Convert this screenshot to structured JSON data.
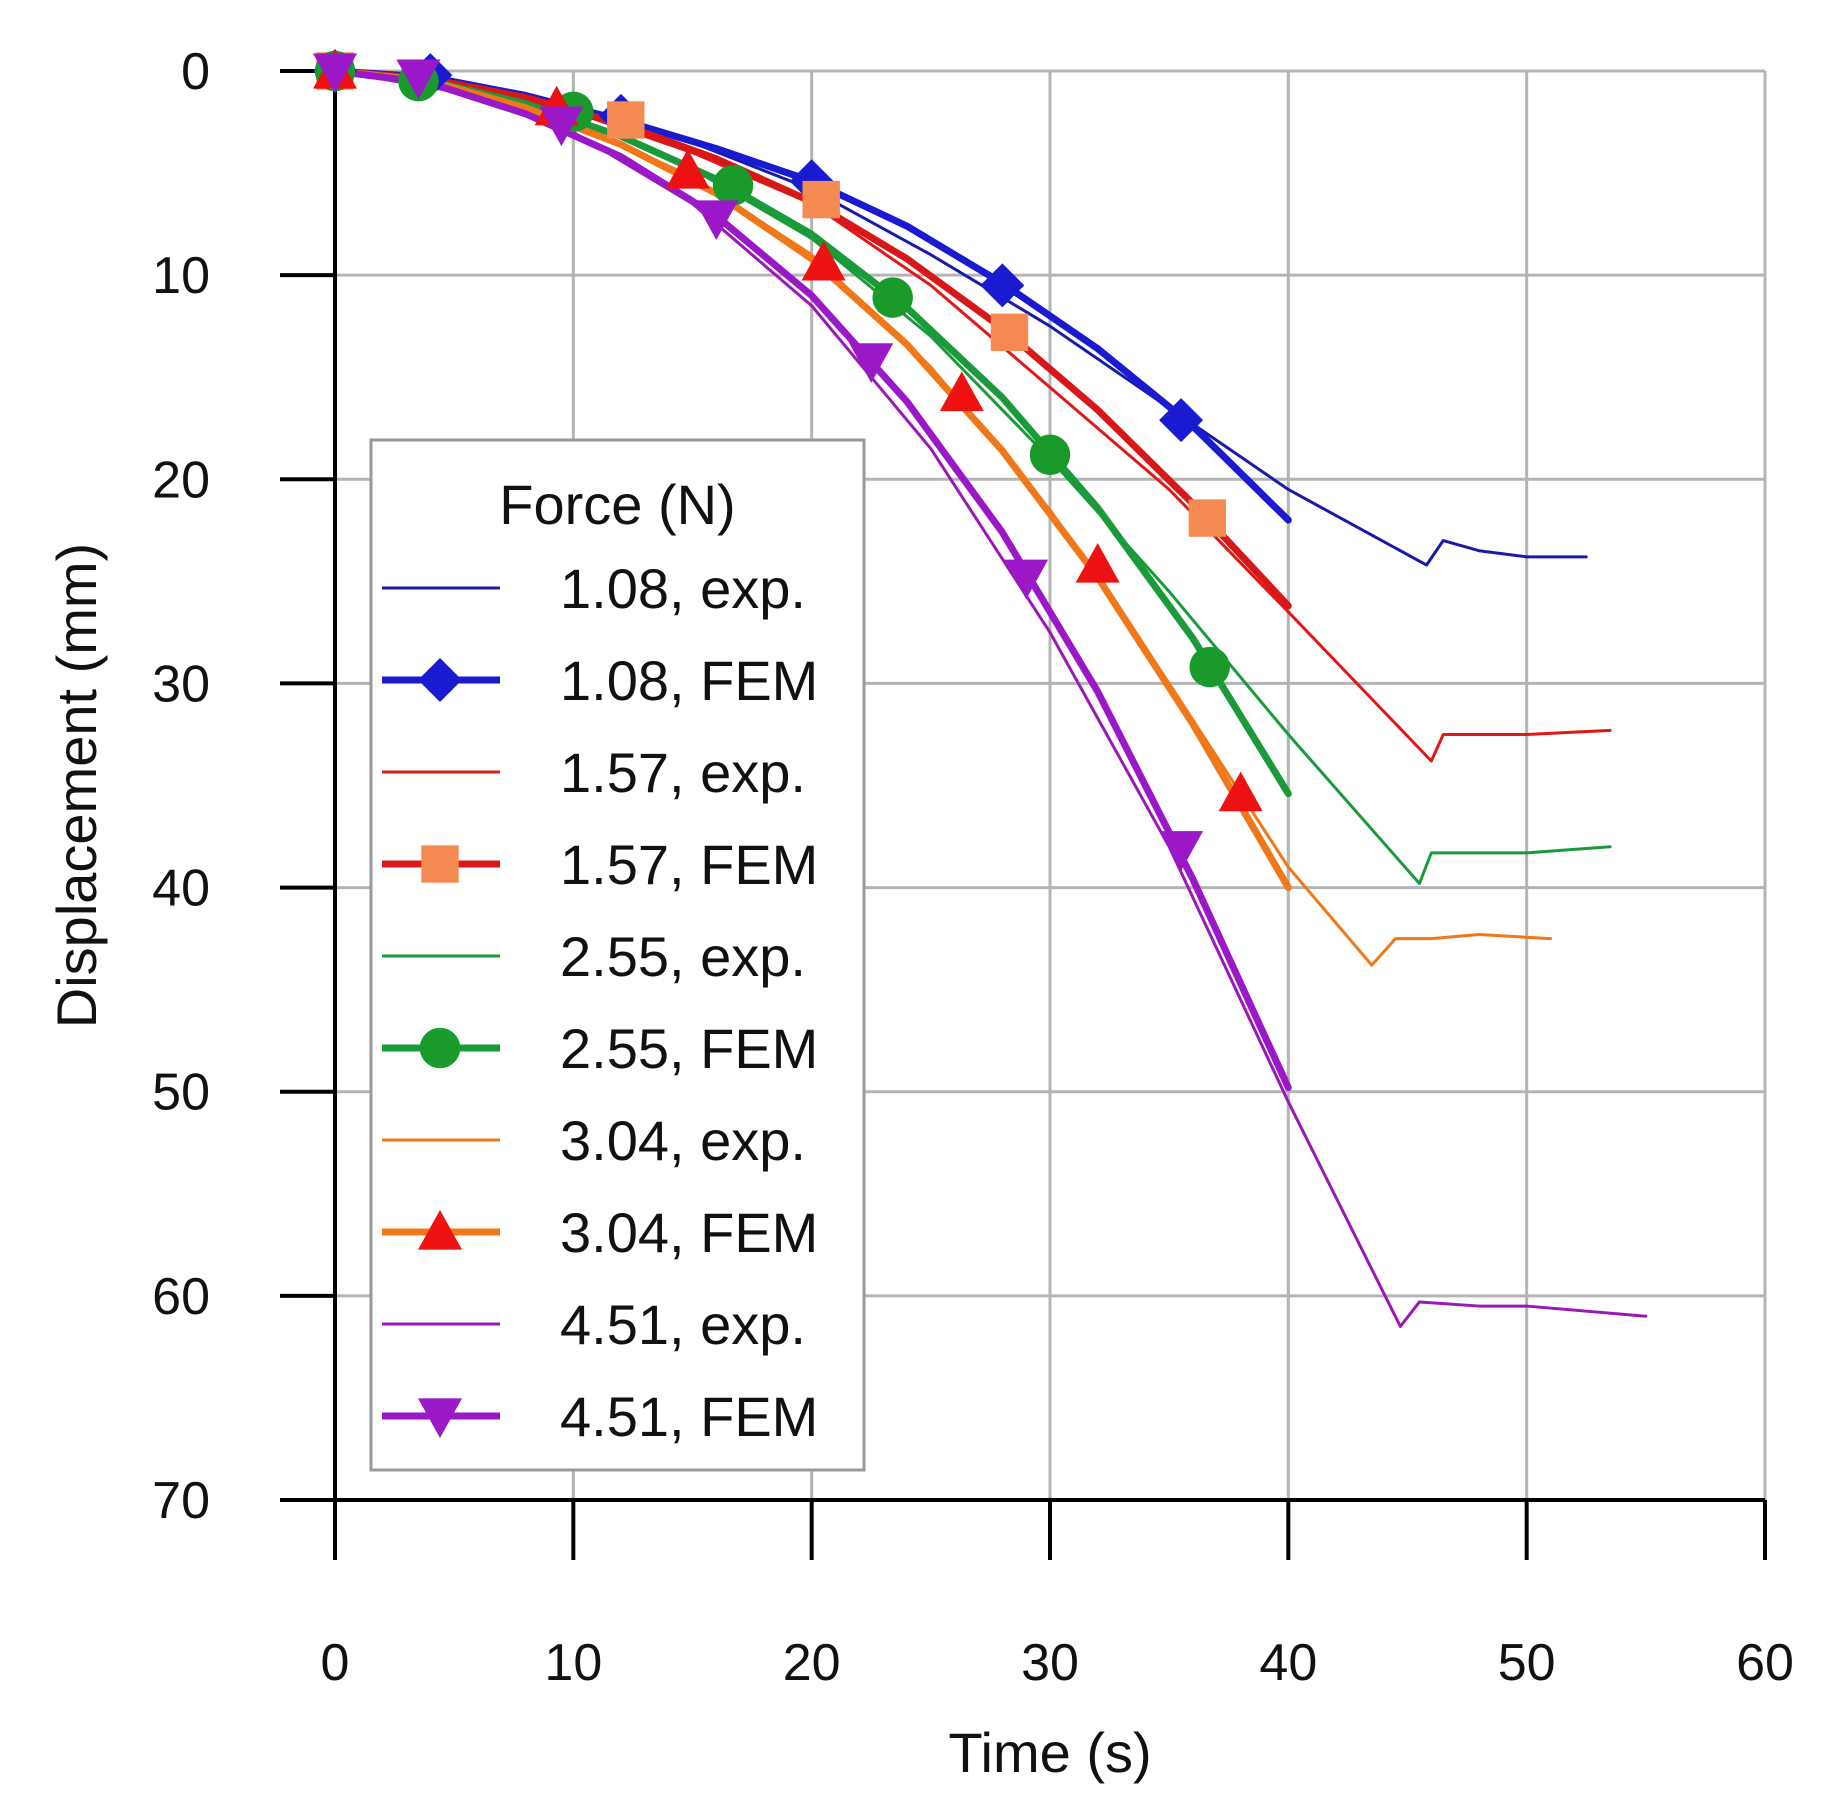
{
  "chart_data": {
    "type": "line",
    "xlabel": "Time (s)",
    "ylabel": "Displacement (mm)",
    "xlim": [
      0,
      60
    ],
    "ylim": [
      0,
      70
    ],
    "y_inverted": true,
    "grid": true,
    "x_ticks": [
      "0",
      "10",
      "20",
      "30",
      "40",
      "50",
      "60"
    ],
    "y_ticks": [
      "0",
      "10",
      "20",
      "30",
      "40",
      "50",
      "60",
      "70"
    ],
    "legend": {
      "title": "Force (N)",
      "placement": "left-center"
    },
    "series": [
      {
        "name": "1.08, exp.",
        "color": "#1a1aa8",
        "style": "thin",
        "x": [
          0,
          5,
          10,
          15,
          20,
          25,
          30,
          35,
          40,
          45.8,
          46.5,
          48,
          50,
          52.5
        ],
        "y": [
          0,
          0.6,
          1.8,
          3.5,
          5.8,
          9.0,
          12.5,
          16.5,
          20.5,
          24.2,
          23.0,
          23.5,
          23.8,
          23.8
        ]
      },
      {
        "name": "1.08, FEM",
        "color": "#1a1ad0",
        "marker": "diamond-blue",
        "x": [
          0,
          4,
          8,
          12,
          16,
          20,
          24,
          28,
          32,
          36,
          40
        ],
        "y": [
          0,
          0.3,
          1.2,
          2.4,
          3.8,
          5.4,
          7.6,
          10.4,
          13.6,
          17.4,
          22.0
        ],
        "marker_x": [
          0,
          4,
          12,
          20,
          28,
          35.5
        ],
        "marker_y": [
          0,
          0.2,
          2.2,
          5.4,
          10.5,
          17.1
        ]
      },
      {
        "name": "1.57, exp.",
        "color": "#e01818",
        "style": "thin",
        "x": [
          0,
          5,
          10,
          15,
          20,
          25,
          30,
          35,
          40,
          46,
          46.5,
          48,
          50,
          53.5
        ],
        "y": [
          0,
          0.7,
          2.0,
          4.0,
          6.5,
          10.5,
          15.5,
          20.5,
          26.5,
          33.8,
          32.5,
          32.5,
          32.5,
          32.3
        ]
      },
      {
        "name": "1.57, FEM",
        "color": "#d81818",
        "marker": "square-orange",
        "x": [
          0,
          4,
          8,
          12,
          16,
          20,
          24,
          28,
          32,
          36,
          40
        ],
        "y": [
          0,
          0.4,
          1.3,
          2.6,
          4.3,
          6.4,
          9.2,
          12.6,
          16.6,
          21.2,
          26.2
        ],
        "marker_x": [
          0,
          12.2,
          20.4,
          28.3,
          36.6
        ],
        "marker_y": [
          0,
          2.4,
          6.3,
          12.8,
          21.9
        ]
      },
      {
        "name": "2.55, exp.",
        "color": "#1a9a3a",
        "style": "thin",
        "x": [
          0,
          5,
          10,
          15,
          20,
          25,
          30,
          35,
          40,
          45.5,
          46,
          48,
          50,
          53.5
        ],
        "y": [
          0,
          0.8,
          2.3,
          4.8,
          8.2,
          13.0,
          19.0,
          25.5,
          32.5,
          39.8,
          38.3,
          38.3,
          38.3,
          38.0
        ]
      },
      {
        "name": "2.55, FEM",
        "color": "#1a9a3a",
        "marker": "circle-green",
        "x": [
          0,
          4,
          8,
          12,
          16,
          20,
          24,
          28,
          32,
          36,
          40
        ],
        "y": [
          0,
          0.5,
          1.6,
          3.2,
          5.3,
          8.0,
          11.6,
          16.0,
          21.4,
          27.8,
          35.4
        ],
        "marker_x": [
          0,
          3.5,
          10,
          16.7,
          23.4,
          30,
          36.7
        ],
        "marker_y": [
          0,
          0.5,
          2.0,
          5.6,
          11.1,
          18.8,
          29.2
        ]
      },
      {
        "name": "3.04, exp.",
        "color": "#f07818",
        "style": "thin",
        "x": [
          0,
          5,
          10,
          15,
          20,
          25,
          30,
          35,
          40,
          43.5,
          44.5,
          46,
          48,
          51
        ],
        "y": [
          0,
          0.8,
          2.5,
          5.2,
          9.0,
          14.5,
          21.5,
          30.0,
          39.0,
          43.8,
          42.5,
          42.5,
          42.3,
          42.5
        ]
      },
      {
        "name": "3.04, FEM",
        "color": "#f07818",
        "marker": "triangle-red",
        "x": [
          0,
          4,
          8,
          12,
          16,
          20,
          24,
          28,
          32,
          36,
          40
        ],
        "y": [
          0,
          0.5,
          1.8,
          3.6,
          6.0,
          9.2,
          13.4,
          18.6,
          24.8,
          32.0,
          40.0
        ],
        "marker_x": [
          0,
          9.3,
          14.8,
          20.5,
          26.3,
          32,
          38
        ],
        "marker_y": [
          0,
          1.8,
          4.9,
          9.4,
          15.8,
          24.2,
          35.4
        ]
      },
      {
        "name": "4.51, exp.",
        "color": "#9a18b8",
        "style": "thin",
        "x": [
          0,
          5,
          10,
          15,
          20,
          25,
          30,
          35,
          40,
          44.7,
          45.5,
          48,
          50,
          55
        ],
        "y": [
          0,
          1.0,
          3.0,
          6.5,
          11.5,
          18.5,
          27.5,
          38.0,
          50.5,
          61.5,
          60.3,
          60.5,
          60.5,
          61.0
        ]
      },
      {
        "name": "4.51, FEM",
        "color": "#9a18c8",
        "marker": "triangle-down-purple",
        "x": [
          0,
          4,
          8,
          12,
          16,
          20,
          24,
          28,
          32,
          36,
          40
        ],
        "y": [
          0,
          0.6,
          2.1,
          4.2,
          7.1,
          11.0,
          16.2,
          22.6,
          30.4,
          39.6,
          49.8
        ],
        "marker_x": [
          0,
          3.5,
          9.5,
          16,
          22.5,
          29,
          35.5
        ],
        "marker_y": [
          0,
          0.3,
          2.6,
          7.2,
          14.2,
          24.8,
          38.1
        ]
      }
    ]
  }
}
